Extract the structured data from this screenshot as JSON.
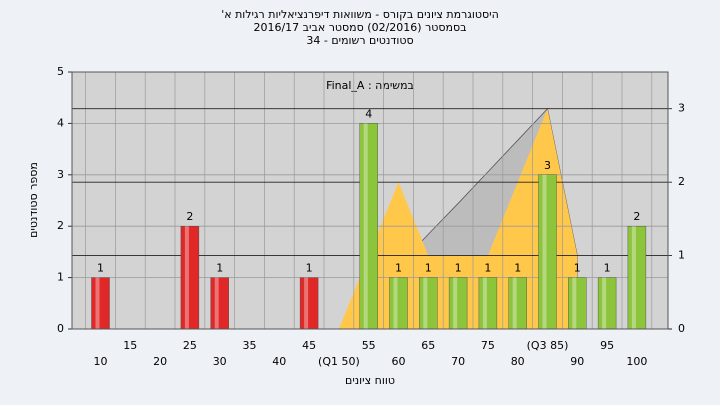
{
  "chart_data": {
    "type": "bar",
    "title_lines": [
      "היסטוגרמת ציונים בקורס - משוואות דיפרנציאליות רגילות א'",
      "בסמסטר (02/2016) סמסטר אביב 2016/17",
      "סטודנטים רשומים - 34"
    ],
    "subtitle": "במשימה : Final_A",
    "y_label": "מספר סטודנטים",
    "x_label": "טווח ציונים",
    "categories": [
      "10",
      "15",
      "20",
      "25",
      "30",
      "35",
      "40",
      "45",
      "(Q1 50)",
      "55",
      "60",
      "65",
      "70",
      "75",
      "80",
      "(Q3 85)",
      "90",
      "95",
      "100"
    ],
    "values": [
      1,
      0,
      0,
      2,
      1,
      0,
      0,
      1,
      0,
      4,
      1,
      1,
      1,
      1,
      1,
      3,
      1,
      1,
      2
    ],
    "colors": [
      "#e02828",
      "#e02828",
      "#e02828",
      "#e02828",
      "#e02828",
      "#e02828",
      "#e02828",
      "#e02828",
      "#e02828",
      "#8cc43c",
      "#8cc43c",
      "#8cc43c",
      "#8cc43c",
      "#8cc43c",
      "#8cc43c",
      "#8cc43c",
      "#8cc43c",
      "#8cc43c",
      "#8cc43c"
    ],
    "y2_series": [
      {
        "color": "#bcbcbc",
        "axis": "y2",
        "values": [
          null,
          null,
          null,
          null,
          null,
          null,
          null,
          null,
          0,
          0.43,
          0.86,
          1.29,
          1.71,
          2.14,
          2.57,
          3,
          1,
          null,
          null
        ]
      },
      {
        "color": "#ffc84a",
        "axis": "y2",
        "values": [
          null,
          null,
          null,
          null,
          null,
          null,
          null,
          null,
          0,
          1,
          2,
          1,
          1,
          1,
          2,
          3,
          1,
          null,
          null
        ]
      }
    ],
    "ylim": [
      0,
      5
    ],
    "yticks": [
      0,
      1,
      2,
      3,
      4,
      5
    ],
    "y2lim": [
      0,
      3.5
    ],
    "y2ticks": [
      0,
      1,
      2,
      3
    ],
    "grid": true
  }
}
